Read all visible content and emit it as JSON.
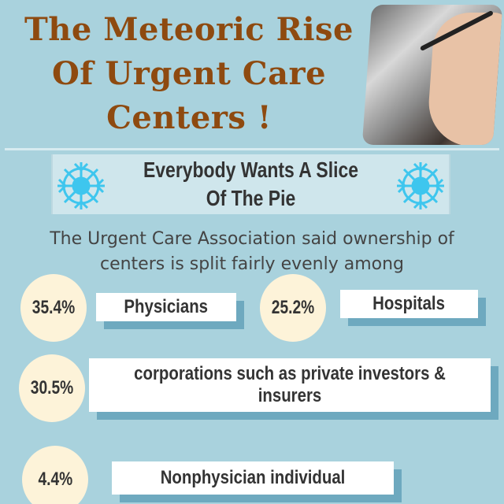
{
  "title": {
    "lines": [
      "The Meteoric Rise",
      "Of Urgent Care",
      "Centers !"
    ]
  },
  "banner": {
    "lines": [
      "Everybody Wants A Slice",
      "Of The Pie"
    ]
  },
  "intro": {
    "lines": [
      "The Urgent Care Association said ownership of",
      "centers is split fairly evenly among"
    ]
  },
  "ownership": [
    {
      "percent": "35.4%",
      "label": "Physicians"
    },
    {
      "percent": "25.2%",
      "label": "Hospitals"
    },
    {
      "percent": "30.5%",
      "label": "corporations such as private investors & insurers"
    },
    {
      "percent": "4.4%",
      "label": "Nonphysician individual"
    }
  ],
  "colors": {
    "background": "#a9d2dd",
    "title": "#8e4a10",
    "circle": "#fdf3d9",
    "shadow": "#6ea9bf",
    "snowflake": "#3ec6ee"
  }
}
